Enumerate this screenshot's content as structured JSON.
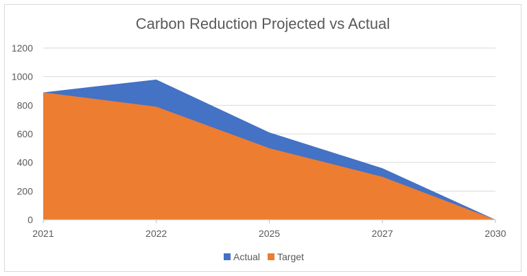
{
  "chart_data": {
    "type": "area",
    "title": "Carbon Reduction Projected vs Actual",
    "xlabel": "",
    "ylabel": "",
    "categories": [
      "2021",
      "2022",
      "2025",
      "2027",
      "2030"
    ],
    "ylim": [
      0,
      1200
    ],
    "yticks": [
      "0",
      "200",
      "400",
      "600",
      "800",
      "1000",
      "1200"
    ],
    "grid": true,
    "legend_position": "bottom",
    "series": [
      {
        "name": "Actual",
        "values": [
          890,
          980,
          610,
          360,
          0
        ],
        "color": "#4472C4"
      },
      {
        "name": "Target",
        "values": [
          890,
          790,
          500,
          300,
          0
        ],
        "color": "#ED7D31"
      }
    ]
  }
}
